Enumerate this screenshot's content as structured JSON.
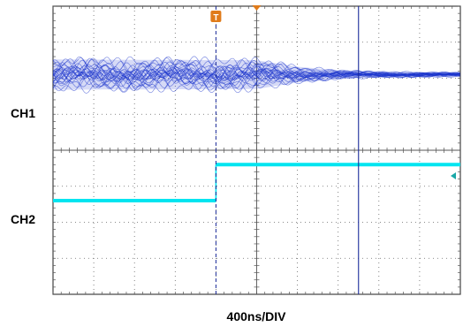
{
  "chart_data": {
    "type": "line",
    "title": "",
    "xlabel": "400ns/DIV",
    "ylabel": "",
    "grid": true,
    "divisions": {
      "x": 10,
      "y": 8
    },
    "time_per_div_ns": 400,
    "xlim_ns": [
      -1600,
      2400
    ],
    "trigger": {
      "label": "T",
      "time_ns": 0,
      "color": "#e07b1a"
    },
    "cursor": {
      "time_ns": 1400,
      "color": "#1a2a9a"
    },
    "series": [
      {
        "name": "CH1",
        "color": "#1a33cc",
        "style": "eye-envelope",
        "center_div": 1.9,
        "envelope": [
          {
            "t_ns": -1600,
            "half_div": 0.42
          },
          {
            "t_ns": 400,
            "half_div": 0.4
          },
          {
            "t_ns": 800,
            "half_div": 0.22
          },
          {
            "t_ns": 1200,
            "half_div": 0.12
          },
          {
            "t_ns": 1600,
            "half_div": 0.08
          },
          {
            "t_ns": 2400,
            "half_div": 0.06
          }
        ]
      },
      {
        "name": "CH2",
        "color": "#00e5f0",
        "style": "step",
        "points": [
          {
            "t_ns": -1600,
            "y_div": 5.4
          },
          {
            "t_ns": 0,
            "y_div": 5.4
          },
          {
            "t_ns": 0,
            "y_div": 4.4
          },
          {
            "t_ns": 2400,
            "y_div": 4.4
          }
        ]
      }
    ],
    "ch2_level_marker": {
      "y_div": 5.4,
      "color": "#1aa8a8"
    }
  }
}
